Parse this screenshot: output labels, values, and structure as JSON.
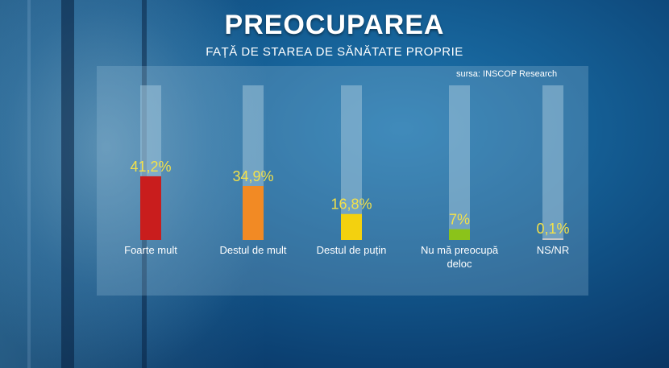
{
  "title": "PREOCUPAREA",
  "subtitle": "FAȚĂ DE STAREA DE SĂNĂTATE PROPRIE",
  "source": "sursa: INSCOP Research",
  "chart_data": {
    "type": "bar",
    "title": "PREOCUPAREA",
    "subtitle": "FAȚĂ DE STAREA DE SĂNĂTATE PROPRIE",
    "categories": [
      [
        "Foarte mult"
      ],
      [
        "Destul de mult"
      ],
      [
        "Destul de puțin"
      ],
      [
        "Nu mă preocupă",
        "deloc"
      ],
      [
        "NS/NR"
      ]
    ],
    "values": [
      41.2,
      34.9,
      16.8,
      7,
      0.1
    ],
    "value_labels": [
      "41,2%",
      "34,9%",
      "16,8%",
      "7%",
      "0,1%"
    ],
    "colors": [
      "#c91d1d",
      "#f28a24",
      "#f3d10f",
      "#8bc31a",
      "#c8c8c8"
    ],
    "track_color": "#9fc3d8",
    "ylim": [
      0,
      100
    ],
    "unit": "%",
    "grid": false,
    "legend": "none"
  }
}
